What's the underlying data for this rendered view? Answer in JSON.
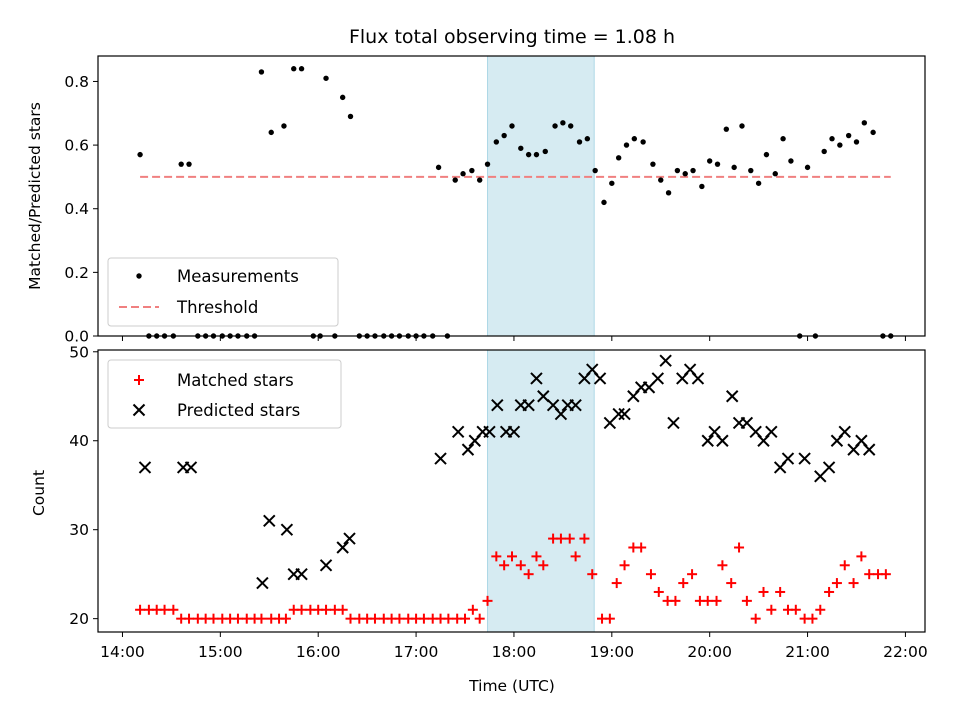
{
  "chart_data": [
    {
      "type": "scatter",
      "title": "Flux total observing time = 1.08 h",
      "xlabel": "",
      "ylabel": "Matched/Predicted stars",
      "ylim": [
        0,
        0.88
      ],
      "yticks": [
        0.0,
        0.2,
        0.4,
        0.6,
        0.8
      ],
      "ytick_labels": [
        "0.0",
        "0.2",
        "0.4",
        "0.6",
        "0.8"
      ],
      "highlight_span_hours": [
        17.73,
        18.82
      ],
      "legend_position": "lower-left",
      "threshold": {
        "name": "Threshold",
        "value": 0.5,
        "x_range_hours": [
          14.18,
          21.85
        ],
        "color": "#f08080"
      },
      "series": [
        {
          "name": "Measurements",
          "color": "#000000",
          "points": [
            [
              14.18,
              0.57
            ],
            [
              14.27,
              0
            ],
            [
              14.35,
              0
            ],
            [
              14.43,
              0
            ],
            [
              14.52,
              0
            ],
            [
              14.6,
              0.54
            ],
            [
              14.68,
              0.54
            ],
            [
              14.77,
              0
            ],
            [
              14.85,
              0
            ],
            [
              14.93,
              0
            ],
            [
              15.02,
              0
            ],
            [
              15.1,
              0
            ],
            [
              15.18,
              0
            ],
            [
              15.27,
              0
            ],
            [
              15.35,
              0
            ],
            [
              15.42,
              0.83
            ],
            [
              15.52,
              0.64
            ],
            [
              15.65,
              0.66
            ],
            [
              15.75,
              0.84
            ],
            [
              15.83,
              0.84
            ],
            [
              15.95,
              0
            ],
            [
              16.02,
              0
            ],
            [
              16.08,
              0.81
            ],
            [
              16.17,
              0
            ],
            [
              16.25,
              0.75
            ],
            [
              16.33,
              0.69
            ],
            [
              16.42,
              0
            ],
            [
              16.5,
              0
            ],
            [
              16.58,
              0
            ],
            [
              16.67,
              0
            ],
            [
              16.75,
              0
            ],
            [
              16.83,
              0
            ],
            [
              16.92,
              0
            ],
            [
              17.0,
              0
            ],
            [
              17.08,
              0
            ],
            [
              17.17,
              0
            ],
            [
              17.23,
              0.53
            ],
            [
              17.32,
              0
            ],
            [
              17.4,
              0.49
            ],
            [
              17.48,
              0.51
            ],
            [
              17.57,
              0.52
            ],
            [
              17.65,
              0.49
            ],
            [
              17.73,
              0.54
            ],
            [
              17.82,
              0.61
            ],
            [
              17.9,
              0.63
            ],
            [
              17.98,
              0.66
            ],
            [
              18.07,
              0.59
            ],
            [
              18.15,
              0.57
            ],
            [
              18.23,
              0.57
            ],
            [
              18.32,
              0.58
            ],
            [
              18.42,
              0.66
            ],
            [
              18.5,
              0.67
            ],
            [
              18.58,
              0.66
            ],
            [
              18.67,
              0.61
            ],
            [
              18.75,
              0.62
            ],
            [
              18.83,
              0.52
            ],
            [
              18.92,
              0.42
            ],
            [
              19.0,
              0.48
            ],
            [
              19.07,
              0.56
            ],
            [
              19.15,
              0.6
            ],
            [
              19.23,
              0.62
            ],
            [
              19.32,
              0.61
            ],
            [
              19.42,
              0.54
            ],
            [
              19.5,
              0.49
            ],
            [
              19.58,
              0.45
            ],
            [
              19.67,
              0.52
            ],
            [
              19.75,
              0.51
            ],
            [
              19.83,
              0.52
            ],
            [
              19.92,
              0.47
            ],
            [
              20.0,
              0.55
            ],
            [
              20.08,
              0.54
            ],
            [
              20.17,
              0.65
            ],
            [
              20.25,
              0.53
            ],
            [
              20.33,
              0.66
            ],
            [
              20.42,
              0.52
            ],
            [
              20.5,
              0.48
            ],
            [
              20.58,
              0.57
            ],
            [
              20.67,
              0.51
            ],
            [
              20.75,
              0.62
            ],
            [
              20.83,
              0.55
            ],
            [
              20.92,
              0
            ],
            [
              21.0,
              0.53
            ],
            [
              21.08,
              0
            ],
            [
              21.17,
              0.58
            ],
            [
              21.25,
              0.62
            ],
            [
              21.33,
              0.6
            ],
            [
              21.42,
              0.63
            ],
            [
              21.5,
              0.61
            ],
            [
              21.58,
              0.67
            ],
            [
              21.67,
              0.64
            ],
            [
              21.77,
              0
            ],
            [
              21.85,
              0
            ]
          ]
        }
      ]
    },
    {
      "type": "scatter",
      "title": "",
      "xlabel": "Time (UTC)",
      "ylabel": "Count",
      "ylim": [
        18.5,
        50.2
      ],
      "yticks": [
        20,
        30,
        40,
        50
      ],
      "ytick_labels": [
        "20",
        "30",
        "40",
        "50"
      ],
      "xlim_hours": [
        13.75,
        22.2
      ],
      "xticks_hours": [
        14,
        15,
        16,
        17,
        18,
        19,
        20,
        21,
        22
      ],
      "xtick_labels": [
        "14:00",
        "15:00",
        "16:00",
        "17:00",
        "18:00",
        "19:00",
        "20:00",
        "21:00",
        "22:00"
      ],
      "highlight_span_hours": [
        17.73,
        18.82
      ],
      "legend_position": "upper-left",
      "series": [
        {
          "name": "Matched stars",
          "marker": "plus",
          "color": "#ff0000",
          "points": [
            [
              14.18,
              21
            ],
            [
              14.27,
              21
            ],
            [
              14.35,
              21
            ],
            [
              14.43,
              21
            ],
            [
              14.52,
              21
            ],
            [
              14.6,
              20
            ],
            [
              14.68,
              20
            ],
            [
              14.77,
              20
            ],
            [
              14.85,
              20
            ],
            [
              14.93,
              20
            ],
            [
              15.02,
              20
            ],
            [
              15.1,
              20
            ],
            [
              15.18,
              20
            ],
            [
              15.27,
              20
            ],
            [
              15.35,
              20
            ],
            [
              15.42,
              20
            ],
            [
              15.52,
              20
            ],
            [
              15.6,
              20
            ],
            [
              15.67,
              20
            ],
            [
              15.75,
              21
            ],
            [
              15.83,
              21
            ],
            [
              15.92,
              21
            ],
            [
              16.0,
              21
            ],
            [
              16.08,
              21
            ],
            [
              16.17,
              21
            ],
            [
              16.25,
              21
            ],
            [
              16.33,
              20
            ],
            [
              16.42,
              20
            ],
            [
              16.5,
              20
            ],
            [
              16.58,
              20
            ],
            [
              16.67,
              20
            ],
            [
              16.75,
              20
            ],
            [
              16.83,
              20
            ],
            [
              16.92,
              20
            ],
            [
              17.0,
              20
            ],
            [
              17.08,
              20
            ],
            [
              17.17,
              20
            ],
            [
              17.25,
              20
            ],
            [
              17.33,
              20
            ],
            [
              17.42,
              20
            ],
            [
              17.5,
              20
            ],
            [
              17.58,
              21
            ],
            [
              17.65,
              20
            ],
            [
              17.73,
              22
            ],
            [
              17.82,
              27
            ],
            [
              17.9,
              26
            ],
            [
              17.98,
              27
            ],
            [
              18.07,
              26
            ],
            [
              18.15,
              25
            ],
            [
              18.23,
              27
            ],
            [
              18.3,
              26
            ],
            [
              18.4,
              29
            ],
            [
              18.48,
              29
            ],
            [
              18.57,
              29
            ],
            [
              18.63,
              27
            ],
            [
              18.72,
              29
            ],
            [
              18.8,
              25
            ],
            [
              18.9,
              20
            ],
            [
              18.98,
              20
            ],
            [
              19.05,
              24
            ],
            [
              19.13,
              26
            ],
            [
              19.22,
              28
            ],
            [
              19.3,
              28
            ],
            [
              19.4,
              25
            ],
            [
              19.48,
              23
            ],
            [
              19.57,
              22
            ],
            [
              19.65,
              22
            ],
            [
              19.73,
              24
            ],
            [
              19.82,
              25
            ],
            [
              19.9,
              22
            ],
            [
              19.98,
              22
            ],
            [
              20.07,
              22
            ],
            [
              20.13,
              26
            ],
            [
              20.22,
              24
            ],
            [
              20.3,
              28
            ],
            [
              20.38,
              22
            ],
            [
              20.47,
              20
            ],
            [
              20.55,
              23
            ],
            [
              20.63,
              21
            ],
            [
              20.72,
              23
            ],
            [
              20.8,
              21
            ],
            [
              20.88,
              21
            ],
            [
              20.97,
              20
            ],
            [
              21.05,
              20
            ],
            [
              21.13,
              21
            ],
            [
              21.22,
              23
            ],
            [
              21.3,
              24
            ],
            [
              21.38,
              26
            ],
            [
              21.47,
              24
            ],
            [
              21.55,
              27
            ],
            [
              21.63,
              25
            ],
            [
              21.72,
              25
            ],
            [
              21.8,
              25
            ]
          ]
        },
        {
          "name": "Predicted stars",
          "marker": "x",
          "color": "#000000",
          "points": [
            [
              14.23,
              37
            ],
            [
              14.62,
              37
            ],
            [
              14.7,
              37
            ],
            [
              15.43,
              24
            ],
            [
              15.5,
              31
            ],
            [
              15.68,
              30
            ],
            [
              15.75,
              25
            ],
            [
              15.83,
              25
            ],
            [
              16.08,
              26
            ],
            [
              16.25,
              28
            ],
            [
              16.32,
              29
            ],
            [
              17.25,
              38
            ],
            [
              17.43,
              41
            ],
            [
              17.53,
              39
            ],
            [
              17.6,
              40
            ],
            [
              17.68,
              41
            ],
            [
              17.75,
              41
            ],
            [
              17.83,
              44
            ],
            [
              17.92,
              41
            ],
            [
              18.0,
              41
            ],
            [
              18.07,
              44
            ],
            [
              18.15,
              44
            ],
            [
              18.23,
              47
            ],
            [
              18.3,
              45
            ],
            [
              18.4,
              44
            ],
            [
              18.48,
              43
            ],
            [
              18.55,
              44
            ],
            [
              18.63,
              44
            ],
            [
              18.72,
              47
            ],
            [
              18.8,
              48
            ],
            [
              18.88,
              47
            ],
            [
              18.98,
              42
            ],
            [
              19.07,
              43
            ],
            [
              19.13,
              43
            ],
            [
              19.22,
              45
            ],
            [
              19.3,
              46
            ],
            [
              19.38,
              46
            ],
            [
              19.47,
              47
            ],
            [
              19.55,
              49
            ],
            [
              19.63,
              42
            ],
            [
              19.72,
              47
            ],
            [
              19.8,
              48
            ],
            [
              19.88,
              47
            ],
            [
              19.98,
              40
            ],
            [
              20.05,
              41
            ],
            [
              20.13,
              40
            ],
            [
              20.23,
              45
            ],
            [
              20.3,
              42
            ],
            [
              20.38,
              42
            ],
            [
              20.47,
              41
            ],
            [
              20.55,
              40
            ],
            [
              20.63,
              41
            ],
            [
              20.72,
              37
            ],
            [
              20.8,
              38
            ],
            [
              20.97,
              38
            ],
            [
              21.13,
              36
            ],
            [
              21.22,
              37
            ],
            [
              21.3,
              40
            ],
            [
              21.38,
              41
            ],
            [
              21.47,
              39
            ],
            [
              21.55,
              40
            ],
            [
              21.63,
              39
            ]
          ]
        }
      ]
    }
  ]
}
